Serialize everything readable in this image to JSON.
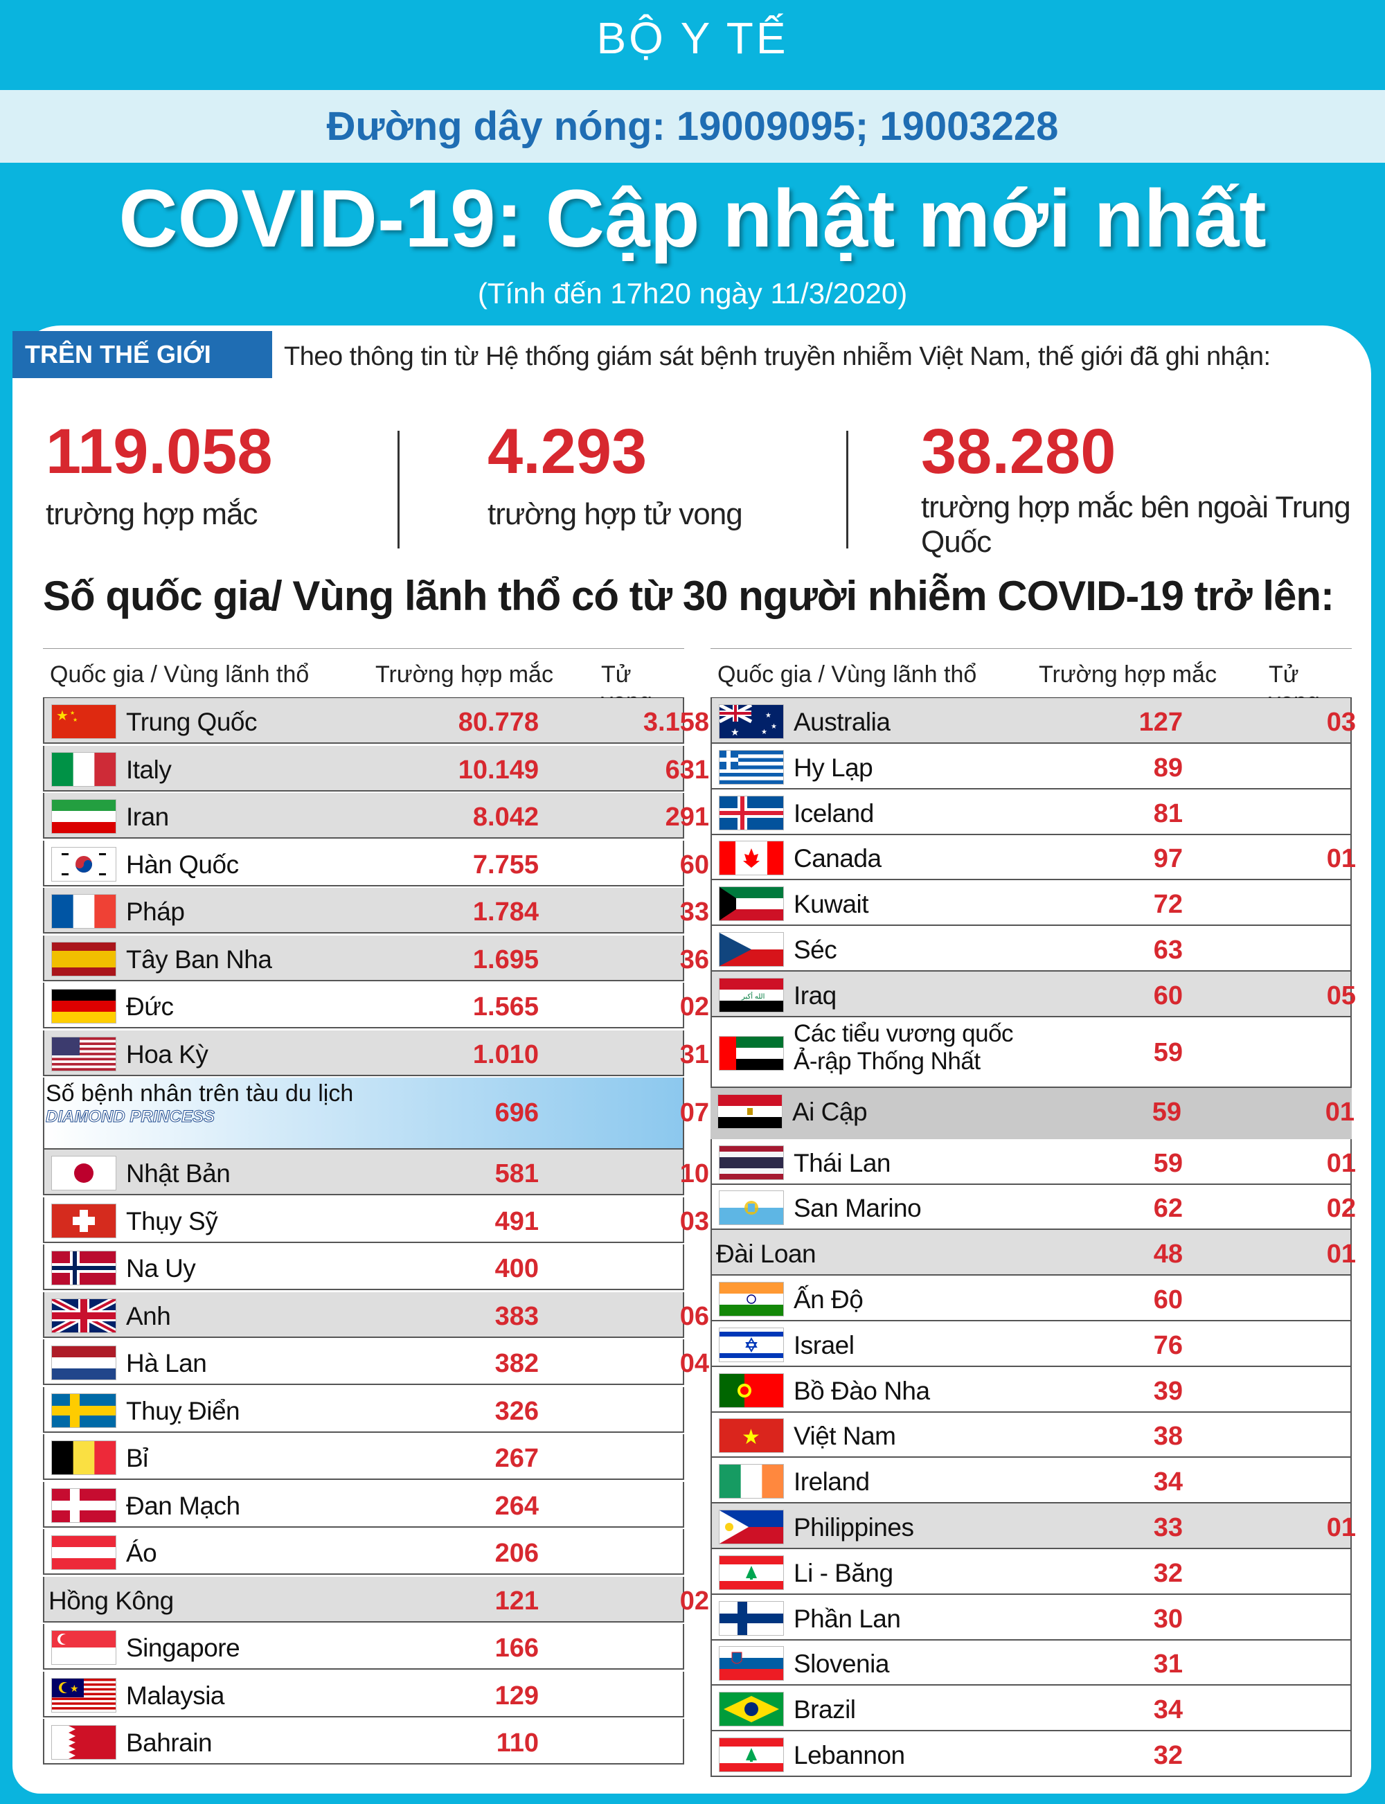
{
  "header": {
    "ministry": "BỘ Y TẾ",
    "hotline": "Đường dây nóng: 19009095; 19003228",
    "title": "COVID-19: Cập nhật mới nhất",
    "as_of": "(Tính đến 17h20 ngày 11/3/2020)"
  },
  "world": {
    "tag": "TRÊN THẾ GIỚI",
    "intro": "Theo thông tin từ Hệ thống giám sát bệnh truyền nhiễm Việt Nam, thế giới đã ghi nhận:",
    "stats": [
      {
        "value": "119.058",
        "label": "trường hợp mắc"
      },
      {
        "value": "4.293",
        "label": "trường hợp tử vong"
      },
      {
        "value": "38.280",
        "label": "trường hợp  mắc bên ngoài Trung Quốc"
      }
    ]
  },
  "section_heading": "Số quốc gia/ Vùng lãnh thổ có từ 30 người  nhiễm COVID-19 trở lên:",
  "table_headers": {
    "country": "Quốc gia / Vùng lãnh thổ",
    "cases": "Trường hợp mắc",
    "deaths": "Tử vong"
  },
  "colors": {
    "accent": "#0ab4de",
    "blue": "#1f6db3",
    "red": "#d7282f"
  },
  "left_rows": [
    {
      "name": "Trung Quốc",
      "cases": "80.778",
      "deaths": "3.158",
      "flag": "china-flag"
    },
    {
      "name": "Italy",
      "cases": "10.149",
      "deaths": "631",
      "flag": "italy-flag"
    },
    {
      "name": "Iran",
      "cases": "8.042",
      "deaths": "291",
      "flag": "iran-flag"
    },
    {
      "name": "Hàn Quốc",
      "cases": "7.755",
      "deaths": "60",
      "flag": "south-korea-flag"
    },
    {
      "name": "Pháp",
      "cases": "1.784",
      "deaths": "33",
      "flag": "france-flag"
    },
    {
      "name": "Tây Ban Nha",
      "cases": "1.695",
      "deaths": "36",
      "flag": "spain-flag"
    },
    {
      "name": "Đức",
      "cases": "1.565",
      "deaths": "02",
      "flag": "germany-flag"
    },
    {
      "name": "Hoa Kỳ",
      "cases": "1.010",
      "deaths": "31",
      "flag": "usa-flag"
    },
    {
      "name": "Số bệnh nhân trên tàu du lịch",
      "cases": "696",
      "deaths": "07",
      "flag": "diamond-princess-ship",
      "logo": "DIAMOND PRINCESS"
    },
    {
      "name": "Nhật Bản",
      "cases": "581",
      "deaths": "10",
      "flag": "japan-flag"
    },
    {
      "name": "Thụy Sỹ",
      "cases": "491",
      "deaths": "03",
      "flag": "switzerland-flag"
    },
    {
      "name": "Na Uy",
      "cases": "400",
      "deaths": "",
      "flag": "norway-flag"
    },
    {
      "name": "Anh",
      "cases": "383",
      "deaths": "06",
      "flag": "uk-flag"
    },
    {
      "name": "Hà Lan",
      "cases": "382",
      "deaths": "04",
      "flag": "netherlands-flag"
    },
    {
      "name": "Thuỵ Điển",
      "cases": "326",
      "deaths": "",
      "flag": "sweden-flag"
    },
    {
      "name": "Bỉ",
      "cases": "267",
      "deaths": "",
      "flag": "belgium-flag"
    },
    {
      "name": "Đan Mạch",
      "cases": "264",
      "deaths": "",
      "flag": "denmark-flag"
    },
    {
      "name": "Áo",
      "cases": "206",
      "deaths": "",
      "flag": "austria-flag"
    },
    {
      "name": "Hồng Kông",
      "cases": "121",
      "deaths": "02",
      "flag": ""
    },
    {
      "name": "Singapore",
      "cases": "166",
      "deaths": "",
      "flag": "singapore-flag"
    },
    {
      "name": "Malaysia",
      "cases": "129",
      "deaths": "",
      "flag": "malaysia-flag"
    },
    {
      "name": "Bahrain",
      "cases": "110",
      "deaths": "",
      "flag": "bahrain-flag"
    }
  ],
  "right_rows": [
    {
      "name": "Australia",
      "cases": "127",
      "deaths": "03",
      "flag": "australia-flag"
    },
    {
      "name": "Hy Lạp",
      "cases": "89",
      "deaths": "",
      "flag": "greece-flag"
    },
    {
      "name": "Iceland",
      "cases": "81",
      "deaths": "",
      "flag": "iceland-flag"
    },
    {
      "name": "Canada",
      "cases": "97",
      "deaths": "01",
      "flag": "canada-flag"
    },
    {
      "name": "Kuwait",
      "cases": "72",
      "deaths": "",
      "flag": "kuwait-flag"
    },
    {
      "name": "Séc",
      "cases": "63",
      "deaths": "",
      "flag": "czech-flag"
    },
    {
      "name": "Iraq",
      "cases": "60",
      "deaths": "05",
      "flag": "iraq-flag"
    },
    {
      "name": "Các tiểu vương quốc Ả-rập Thống Nhất",
      "name_line1": "Các tiểu vương quốc",
      "name_line2": "Ả-rập Thống Nhất",
      "cases": "59",
      "deaths": "",
      "flag": "uae-flag"
    },
    {
      "name": "Ai Cập",
      "cases": "59",
      "deaths": "01",
      "flag": "egypt-flag"
    },
    {
      "name": "Thái Lan",
      "cases": "59",
      "deaths": "01",
      "flag": "thailand-flag"
    },
    {
      "name": "San Marino",
      "cases": "62",
      "deaths": "02",
      "flag": "san-marino-flag"
    },
    {
      "name": "Đài Loan",
      "cases": "48",
      "deaths": "01",
      "flag": ""
    },
    {
      "name": "Ấn Độ",
      "cases": "60",
      "deaths": "",
      "flag": "india-flag"
    },
    {
      "name": "Israel",
      "cases": "76",
      "deaths": "",
      "flag": "israel-flag"
    },
    {
      "name": "Bồ Đào Nha",
      "cases": "39",
      "deaths": "",
      "flag": "portugal-flag"
    },
    {
      "name": "Việt Nam",
      "cases": "38",
      "deaths": "",
      "flag": "vietnam-flag"
    },
    {
      "name": "Ireland",
      "cases": "34",
      "deaths": "",
      "flag": "ireland-flag"
    },
    {
      "name": "Philippines",
      "cases": "33",
      "deaths": "01",
      "flag": "philippines-flag"
    },
    {
      "name": "Li - Băng",
      "cases": "32",
      "deaths": "",
      "flag": "lebanon-flag"
    },
    {
      "name": "Phần Lan",
      "cases": "30",
      "deaths": "",
      "flag": "finland-flag"
    },
    {
      "name": "Slovenia",
      "cases": "31",
      "deaths": "",
      "flag": "slovenia-flag"
    },
    {
      "name": "Brazil",
      "cases": "34",
      "deaths": "",
      "flag": "brazil-flag"
    },
    {
      "name": "Lebannon",
      "cases": "32",
      "deaths": "",
      "flag": "lebanon-flag"
    }
  ]
}
